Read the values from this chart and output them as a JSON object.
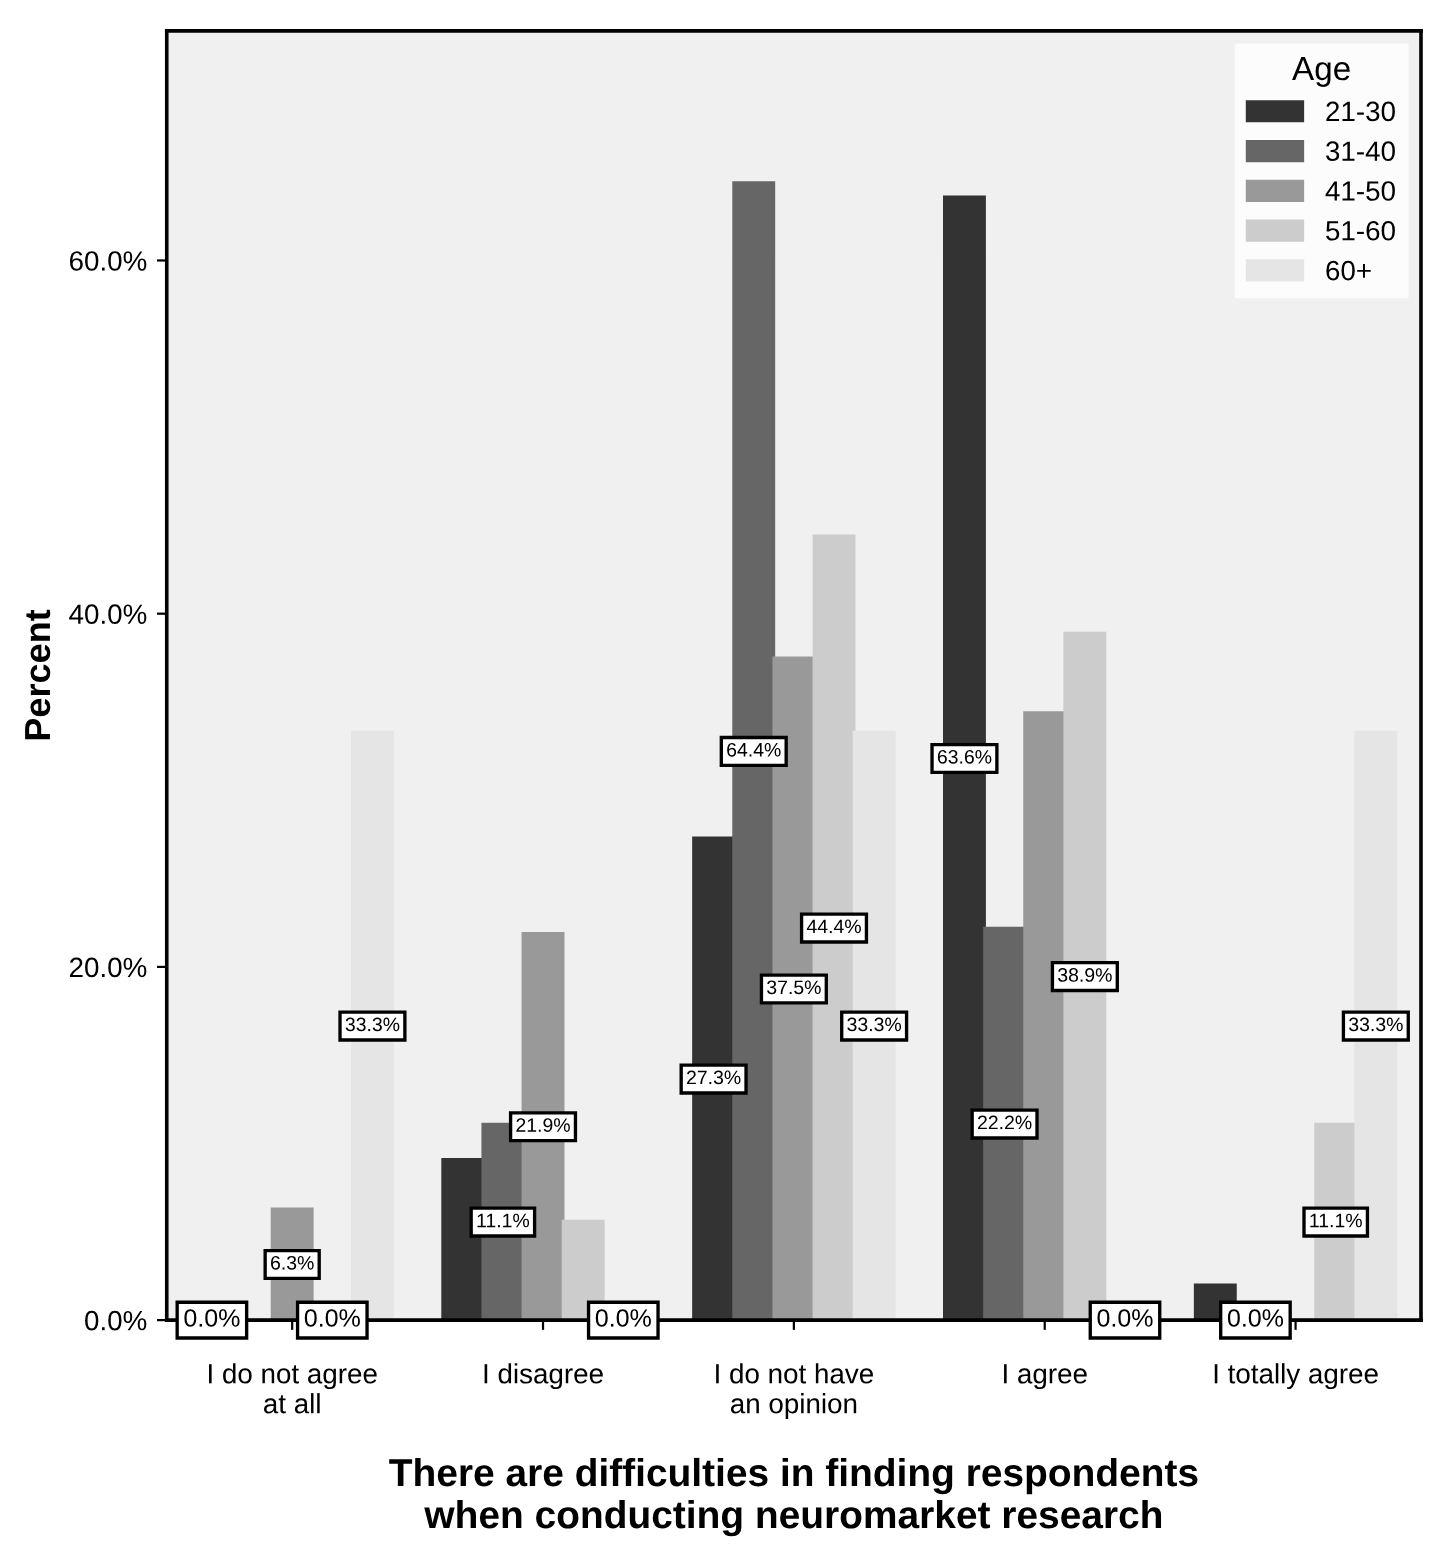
{
  "chart_data": {
    "type": "bar",
    "xlabel": "There are difficulties in finding respondents\nwhen conducting neuromarket research",
    "ylabel": "Percent",
    "legend_title": "Age",
    "categories": [
      "I do not agree\nat all",
      "I disagree",
      "I do not have\nan opinion",
      "I agree",
      "I totally agree"
    ],
    "series": [
      {
        "name": "21-30",
        "color": "#333333",
        "values": [
          0,
          9.1,
          27.3,
          63.6,
          2.0
        ],
        "value_labels": [
          "0.0%",
          null,
          "27.3%",
          "63.6%",
          null
        ]
      },
      {
        "name": "31-40",
        "color": "#666666",
        "values": [
          0,
          11.1,
          64.4,
          22.2,
          0
        ],
        "value_labels": [
          null,
          "11.1%",
          "64.4%",
          "22.2%",
          "0.0%"
        ]
      },
      {
        "name": "41-50",
        "color": "#999999",
        "values": [
          6.3,
          21.9,
          37.5,
          34.4,
          0
        ],
        "value_labels": [
          "6.3%",
          "21.9%",
          "37.5%",
          null,
          null
        ]
      },
      {
        "name": "51-60",
        "color": "#cccccc",
        "values": [
          0,
          5.6,
          44.4,
          38.9,
          11.1
        ],
        "value_labels": [
          "0.0%",
          null,
          "44.4%",
          "38.9%",
          "11.1%"
        ]
      },
      {
        "name": "60+",
        "color": "#e5e5e5",
        "values": [
          33.3,
          0,
          33.3,
          0,
          33.3
        ],
        "value_labels": [
          "33.3%",
          "0.0%",
          "33.3%",
          "0.0%",
          "33.3%"
        ]
      }
    ],
    "ylim": [
      0,
      73
    ],
    "yticks": [
      {
        "value": 0,
        "label": "0.0%"
      },
      {
        "value": 20,
        "label": "20.0%"
      },
      {
        "value": 40,
        "label": "40.0%"
      },
      {
        "value": 60,
        "label": "60.0%"
      }
    ],
    "legend": "top right"
  }
}
